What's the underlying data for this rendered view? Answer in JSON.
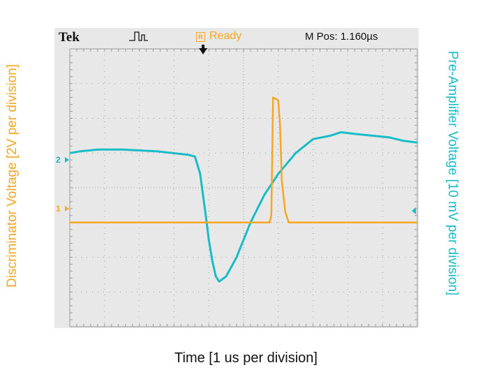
{
  "axes": {
    "left_label": "Discriminator Voltage [2V per division]",
    "right_label": "Pre-Amplifier Voltage [10 mV per division]",
    "x_label": "Time [1 us per division]"
  },
  "scope": {
    "brand": "Tek",
    "status": "Ready",
    "status_indicator": "R",
    "position": "M Pos: 1.160µs",
    "channel2_marker": "2",
    "channel1_marker": "1"
  },
  "colors": {
    "discriminator": "#f5a623",
    "preamp": "#17bcc6",
    "screen": "#e8e8e8",
    "grid": "#9a9a9a"
  },
  "chart_data": {
    "type": "line",
    "x_divisions": 10,
    "y_divisions": 8,
    "series": [
      {
        "name": "Pre-Amplifier Voltage",
        "color": "#17bcc6",
        "x": [
          0,
          0.3,
          0.8,
          1.5,
          2.5,
          3.4,
          3.6,
          3.75,
          3.9,
          4.0,
          4.1,
          4.2,
          4.3,
          4.5,
          4.8,
          5.2,
          5.6,
          6.0,
          6.5,
          7.0,
          7.5,
          7.8,
          8.2,
          8.7,
          9.2,
          9.6,
          10
        ],
        "y": [
          5.0,
          5.05,
          5.1,
          5.1,
          5.05,
          4.95,
          4.9,
          4.4,
          3.3,
          2.5,
          1.9,
          1.45,
          1.3,
          1.45,
          2.0,
          3.0,
          3.8,
          4.4,
          5.0,
          5.4,
          5.5,
          5.6,
          5.55,
          5.5,
          5.45,
          5.35,
          5.3
        ]
      },
      {
        "name": "Discriminator Voltage",
        "color": "#f5a623",
        "x": [
          0,
          5.75,
          5.8,
          5.85,
          5.95,
          6.0,
          6.05,
          6.1,
          6.2,
          6.3,
          10
        ],
        "y": [
          3.0,
          3.0,
          3.2,
          6.6,
          6.55,
          6.5,
          5.8,
          4.2,
          3.3,
          3.0,
          3.0
        ]
      }
    ],
    "ylim": [
      0,
      8
    ],
    "xlim": [
      0,
      10
    ]
  }
}
